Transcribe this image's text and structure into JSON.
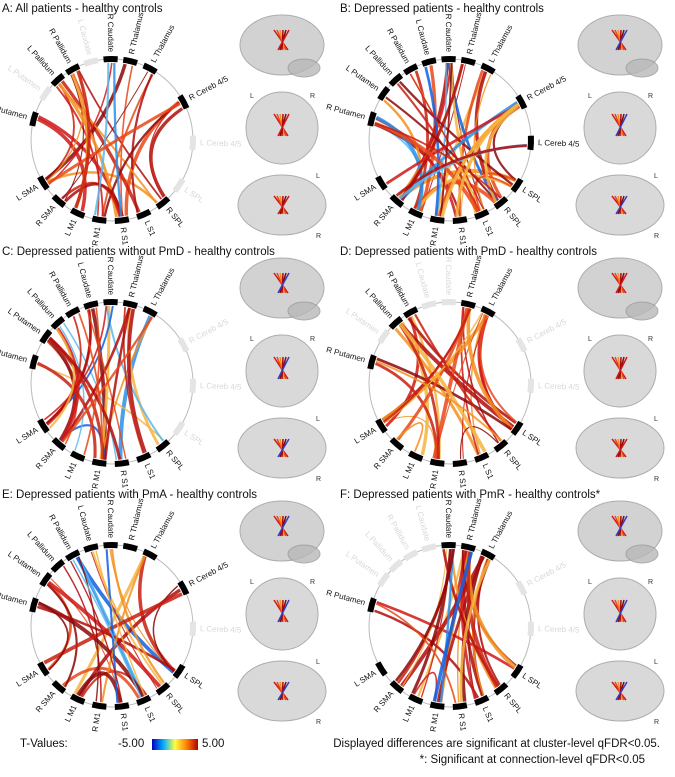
{
  "panels": [
    {
      "title": "A: All patients - healthy  controls",
      "nodes": [
        {
          "label": "L Pallidum",
          "active": true
        },
        {
          "label": "R Pallidum",
          "active": true
        },
        {
          "label": "L Caudate",
          "active": false
        },
        {
          "label": "R Caudate",
          "active": true
        },
        {
          "label": "R Thalamus",
          "active": true
        },
        {
          "label": "L Thalamus",
          "active": true
        },
        {
          "label": "R Cereb 4/5",
          "active": true
        },
        {
          "label": "L Cereb 4/5",
          "active": false
        },
        {
          "label": "L SPL",
          "active": false
        },
        {
          "label": "R SPL",
          "active": true
        },
        {
          "label": "L S1",
          "active": true
        },
        {
          "label": "R S1",
          "active": true
        },
        {
          "label": "R M1",
          "active": true
        },
        {
          "label": "L M1",
          "active": true
        },
        {
          "label": "R SMA",
          "active": true
        },
        {
          "label": "L SMA",
          "active": true
        },
        {
          "label": "R Putamen",
          "active": true
        },
        {
          "label": "L Putamen",
          "active": false
        }
      ],
      "brain_labels": [
        "L",
        "R",
        "L",
        "R"
      ]
    },
    {
      "title": "B: Depressed patients - healthy controls",
      "nodes": [
        {
          "label": "L Pallidum",
          "active": true
        },
        {
          "label": "R Pallidum",
          "active": true
        },
        {
          "label": "L Caudate",
          "active": true
        },
        {
          "label": "R Caudate",
          "active": true
        },
        {
          "label": "R Thalamus",
          "active": true
        },
        {
          "label": "L Thalamus",
          "active": true
        },
        {
          "label": "R Cereb 4/5",
          "active": true
        },
        {
          "label": "L Cereb 4/5",
          "active": true
        },
        {
          "label": "L SPL",
          "active": true
        },
        {
          "label": "R SPL",
          "active": true
        },
        {
          "label": "L S1",
          "active": true
        },
        {
          "label": "R S1",
          "active": true
        },
        {
          "label": "R M1",
          "active": true
        },
        {
          "label": "L M1",
          "active": true
        },
        {
          "label": "R SMA",
          "active": true
        },
        {
          "label": "L SMA",
          "active": true
        },
        {
          "label": "R Putamen",
          "active": true
        },
        {
          "label": "L Putamen",
          "active": true
        }
      ],
      "brain_labels": [
        "L",
        "R",
        "L",
        "R"
      ]
    },
    {
      "title": "C: Depressed patients without PmD - healthy controls",
      "nodes": [
        {
          "label": "L Pallidum",
          "active": true
        },
        {
          "label": "R Pallidum",
          "active": true
        },
        {
          "label": "L Caudate",
          "active": true
        },
        {
          "label": "R Caudate",
          "active": true
        },
        {
          "label": "R Thalamus",
          "active": true
        },
        {
          "label": "L Thalamus",
          "active": true
        },
        {
          "label": "R Cereb 4/5",
          "active": false
        },
        {
          "label": "L Cereb 4/5",
          "active": false
        },
        {
          "label": "L SPL",
          "active": false
        },
        {
          "label": "R SPL",
          "active": true
        },
        {
          "label": "L S1",
          "active": true
        },
        {
          "label": "R S1",
          "active": true
        },
        {
          "label": "R M1",
          "active": true
        },
        {
          "label": "L M1",
          "active": true
        },
        {
          "label": "R SMA",
          "active": true
        },
        {
          "label": "L SMA",
          "active": true
        },
        {
          "label": "R Putamen",
          "active": true
        },
        {
          "label": "L Putamen",
          "active": true
        }
      ],
      "brain_labels": [
        "L",
        "R",
        "L",
        "R"
      ]
    },
    {
      "title": "D: Depressed patients with PmD - healthy controls",
      "nodes": [
        {
          "label": "L Pallidum",
          "active": true
        },
        {
          "label": "R Pallidum",
          "active": true
        },
        {
          "label": "L Caudate",
          "active": false
        },
        {
          "label": "R Caudate",
          "active": false
        },
        {
          "label": "R Thalamus",
          "active": true
        },
        {
          "label": "L Thalamus",
          "active": true
        },
        {
          "label": "R Cereb 4/5",
          "active": false
        },
        {
          "label": "L Cereb 4/5",
          "active": false
        },
        {
          "label": "L SPL",
          "active": true
        },
        {
          "label": "R SPL",
          "active": true
        },
        {
          "label": "L S1",
          "active": true
        },
        {
          "label": "R S1",
          "active": true
        },
        {
          "label": "R M1",
          "active": true
        },
        {
          "label": "L M1",
          "active": true
        },
        {
          "label": "R SMA",
          "active": true
        },
        {
          "label": "L SMA",
          "active": true
        },
        {
          "label": "R Putamen",
          "active": true
        },
        {
          "label": "L Putamen",
          "active": false
        }
      ],
      "brain_labels": [
        "L",
        "R",
        "L",
        "R"
      ]
    },
    {
      "title": "E: Depressed patients with PmA - healthy controls",
      "nodes": [
        {
          "label": "L Pallidum",
          "active": true
        },
        {
          "label": "R Pallidum",
          "active": true
        },
        {
          "label": "L Caudate",
          "active": true
        },
        {
          "label": "R Caudate",
          "active": true
        },
        {
          "label": "R Thalamus",
          "active": true
        },
        {
          "label": "L Thalamus",
          "active": true
        },
        {
          "label": "R Cereb 4/5",
          "active": true
        },
        {
          "label": "L Cereb 4/5",
          "active": false
        },
        {
          "label": "L SPL",
          "active": true
        },
        {
          "label": "R SPL",
          "active": true
        },
        {
          "label": "L S1",
          "active": true
        },
        {
          "label": "R S1",
          "active": true
        },
        {
          "label": "R M1",
          "active": true
        },
        {
          "label": "L M1",
          "active": true
        },
        {
          "label": "R SMA",
          "active": true
        },
        {
          "label": "L SMA",
          "active": true
        },
        {
          "label": "R Putamen",
          "active": true
        },
        {
          "label": "L Putamen",
          "active": true
        }
      ],
      "brain_labels": [
        "L",
        "R",
        "L",
        "R"
      ]
    },
    {
      "title": "F: Depressed patients with PmR - healthy controls*",
      "nodes": [
        {
          "label": "L Pallidum",
          "active": false
        },
        {
          "label": "R Pallidum",
          "active": false
        },
        {
          "label": "L Caudate",
          "active": false
        },
        {
          "label": "R Caudate",
          "active": true
        },
        {
          "label": "R Thalamus",
          "active": true
        },
        {
          "label": "L Thalamus",
          "active": true
        },
        {
          "label": "R Cereb 4/5",
          "active": false
        },
        {
          "label": "L Cereb 4/5",
          "active": false
        },
        {
          "label": "L SPL",
          "active": true
        },
        {
          "label": "R SPL",
          "active": true
        },
        {
          "label": "L S1",
          "active": true
        },
        {
          "label": "R S1",
          "active": true
        },
        {
          "label": "R M1",
          "active": true
        },
        {
          "label": "L M1",
          "active": true
        },
        {
          "label": "R SMA",
          "active": true
        },
        {
          "label": "L SMA",
          "active": true
        },
        {
          "label": "R Putamen",
          "active": true
        },
        {
          "label": "L Putamen",
          "active": false
        }
      ],
      "brain_labels": [
        "L",
        "R",
        "L",
        "R"
      ]
    }
  ],
  "colorbar": {
    "label": "T-Values:",
    "min_label": "-5.00",
    "max_label": "5.00"
  },
  "notes": [
    "Displayed differences are significant at cluster-level qFDR<0.05.",
    "*: Significant at connection-level qFDR<0.05"
  ]
}
